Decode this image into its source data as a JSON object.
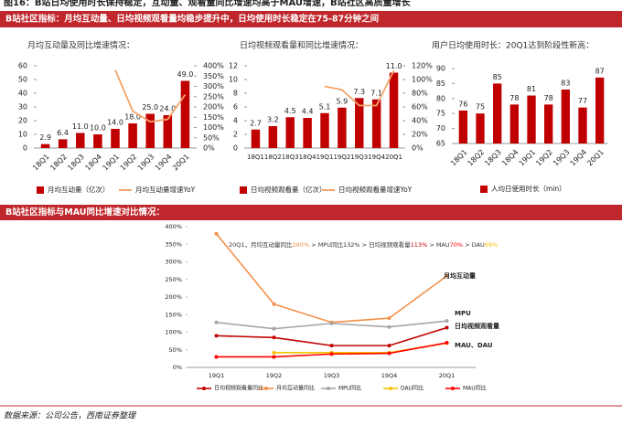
{
  "page_title": "图16：B站日均使用时长保持稳定，互动量、观看量同比增速均高于MAU增速，B站社区高质量增长",
  "section1_header": "B站社区指标：月均互动量、日均视频观看量均稳步提升中，日均使用时长稳定在75-87分钟之间",
  "section2_header": "B站社区指标与MAU同比增速对比情况：",
  "source": "数据来源：公司公告，西南证券整理",
  "chart_data": [
    {
      "type": "combo",
      "title": "月均互动量及同比增速情况：",
      "categories": [
        "18Q1",
        "18Q2",
        "18Q3",
        "18Q4",
        "19Q1",
        "19Q2",
        "19Q3",
        "19Q4",
        "20Q1"
      ],
      "series": [
        {
          "name": "月均互动量（亿次）",
          "color": "#c00000",
          "values": [
            2.9,
            6.4,
            11.0,
            10.0,
            14.0,
            18.0,
            25.0,
            24.0,
            49.0
          ],
          "value_labels": [
            "2.9",
            "6.4",
            "11.0",
            "10.0",
            "14.0",
            "18.0",
            "25.0",
            "24.0",
            "49.0"
          ]
        },
        {
          "name": "月均互动量增速YoY",
          "color": "#f4a46a",
          "axis": "y2",
          "values": [
            null,
            null,
            null,
            null,
            380,
            180,
            128,
            140,
            260
          ]
        }
      ],
      "ylim": [
        0,
        60
      ],
      "yticks": [
        0,
        10,
        20,
        30,
        40,
        50,
        60
      ],
      "y2lim": [
        0,
        400
      ],
      "y2ticks": [
        {
          "value": 0,
          "label": "0%"
        },
        {
          "value": 50,
          "label": "50%"
        },
        {
          "value": 100,
          "label": "100%"
        },
        {
          "value": 150,
          "label": "150%"
        },
        {
          "value": 200,
          "label": "200%"
        },
        {
          "value": 250,
          "label": "250%"
        },
        {
          "value": 300,
          "label": "300%"
        },
        {
          "value": 350,
          "label": "350%"
        },
        {
          "value": 400,
          "label": "400%"
        }
      ]
    },
    {
      "type": "combo",
      "title": "日均视频观看量和同比增速情况：",
      "categories": [
        "18Q1",
        "18Q2",
        "18Q3",
        "18Q4",
        "19Q1",
        "19Q2",
        "19Q3",
        "19Q4",
        "20Q1"
      ],
      "series": [
        {
          "name": "日均视频观看量（亿次）",
          "color": "#c00000",
          "values": [
            2.7,
            3.2,
            4.5,
            4.4,
            5.1,
            5.9,
            7.3,
            7.1,
            11.0
          ],
          "value_labels": [
            "2.7",
            "3.2",
            "4.5",
            "4.4",
            "5.1",
            "5.9",
            "7.3",
            "7.1",
            "11.0"
          ]
        },
        {
          "name": "日均视频观看量增速YoY",
          "color": "#f4a46a",
          "axis": "y2",
          "values": [
            null,
            null,
            null,
            null,
            90,
            85,
            62,
            62,
            113
          ]
        }
      ],
      "ylim": [
        0,
        12
      ],
      "yticks": [
        0,
        2,
        4,
        6,
        8,
        10,
        12
      ],
      "y2lim": [
        0,
        120
      ],
      "y2ticks": [
        {
          "value": 0,
          "label": "0%"
        },
        {
          "value": 20,
          "label": "20%"
        },
        {
          "value": 40,
          "label": "40%"
        },
        {
          "value": 60,
          "label": "60%"
        },
        {
          "value": 80,
          "label": "80%"
        },
        {
          "value": 100,
          "label": "100%"
        },
        {
          "value": 120,
          "label": "120%"
        }
      ]
    },
    {
      "type": "bar",
      "title": "用户日均使用时长：20Q1达到阶段性新高：",
      "categories": [
        "18Q1",
        "18Q2",
        "18Q3",
        "18Q4",
        "19Q1",
        "19Q2",
        "19Q3",
        "19Q4",
        "20Q1"
      ],
      "series": [
        {
          "name": "人均日使用时长（min）",
          "color": "#c00000",
          "values": [
            76,
            75,
            85,
            78,
            81,
            78,
            83,
            77,
            87
          ]
        }
      ],
      "ylim": [
        65,
        90
      ],
      "yticks": [
        65,
        70,
        75,
        80,
        85,
        90
      ]
    },
    {
      "type": "line",
      "categories": [
        "19Q1",
        "19Q2",
        "19Q3",
        "19Q4",
        "20Q1"
      ],
      "series": [
        {
          "name": "日均视频观看量同比",
          "color": "#c00000",
          "values": [
            90,
            85,
            62,
            62,
            113
          ]
        },
        {
          "name": "月均互动量同比",
          "color": "#f4904a",
          "values": [
            380,
            180,
            128,
            140,
            260
          ]
        },
        {
          "name": "MPU同比",
          "color": "#a6a6a6",
          "values": [
            128,
            110,
            125,
            115,
            132
          ]
        },
        {
          "name": "DAU同比",
          "color": "#f5c400",
          "values": [
            null,
            42,
            42,
            42,
            69
          ]
        },
        {
          "name": "MAU同比",
          "color": "#ff0000",
          "values": [
            30,
            30,
            38,
            40,
            70
          ]
        }
      ],
      "ylim": [
        0,
        400
      ],
      "yticks": [
        {
          "value": 0,
          "label": "0%"
        },
        {
          "value": 50,
          "label": "50%"
        },
        {
          "value": 100,
          "label": "100%"
        },
        {
          "value": 150,
          "label": "150%"
        },
        {
          "value": 200,
          "label": "200%"
        },
        {
          "value": 250,
          "label": "250%"
        },
        {
          "value": 300,
          "label": "300%"
        },
        {
          "value": 350,
          "label": "350%"
        },
        {
          "value": 400,
          "label": "400%"
        }
      ],
      "annotation": [
        {
          "text": "20Q1，月均互动量同比",
          "color": "#333333"
        },
        {
          "text": "260%",
          "color": "#f4904a"
        },
        {
          "text": " > MPU同比132% > 日均视频观看量",
          "color": "#333333"
        },
        {
          "text": "113%",
          "color": "#c00000"
        },
        {
          "text": " > MAU",
          "color": "#333333"
        },
        {
          "text": "70%",
          "color": "#ff0000"
        },
        {
          "text": " > DAU",
          "color": "#333333"
        },
        {
          "text": "69%",
          "color": "#f5c400"
        }
      ],
      "series_labels": [
        {
          "text": "月均互动量",
          "color": "#f4904a"
        },
        {
          "text": "MPU",
          "color": "#7f7f7f"
        },
        {
          "text": "日均视频观看量",
          "color": "#c00000"
        },
        {
          "text": "MAU、DAU",
          "color": "#f4904a"
        }
      ]
    }
  ]
}
